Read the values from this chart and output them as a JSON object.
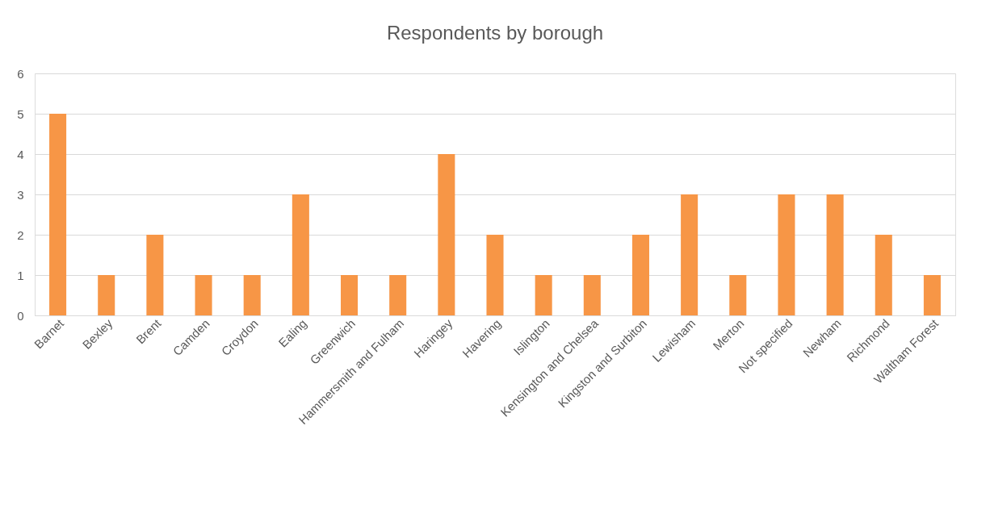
{
  "chart_data": {
    "type": "bar",
    "title": "Respondents by borough",
    "categories": [
      "Barnet",
      "Bexley",
      "Brent",
      "Camden",
      "Croydon",
      "Ealing",
      "Greenwich",
      "Hammersmith and Fulham",
      "Haringey",
      "Havering",
      "Islington",
      "Kensington and Chelsea",
      "Kingston and Surbiton",
      "Lewisham",
      "Merton",
      "Not specified",
      "Newham",
      "Richmond",
      "Waltham Forest"
    ],
    "values": [
      5,
      1,
      2,
      1,
      1,
      3,
      1,
      1,
      4,
      2,
      1,
      1,
      2,
      3,
      1,
      3,
      3,
      2,
      1
    ],
    "color": "#f79646",
    "ylim": [
      0,
      6
    ],
    "yticks": [
      0,
      1,
      2,
      3,
      4,
      5,
      6
    ],
    "grid": "y"
  }
}
